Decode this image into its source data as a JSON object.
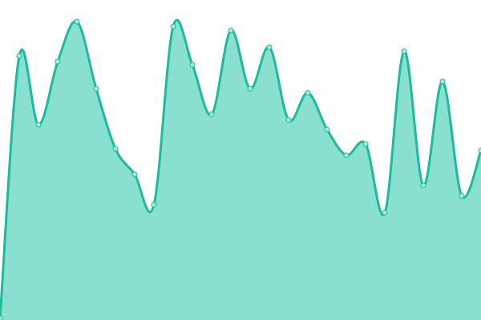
{
  "chart_data": {
    "type": "area",
    "title": "",
    "xlabel": "",
    "ylabel": "",
    "x": [
      0,
      1,
      2,
      3,
      4,
      5,
      6,
      7,
      8,
      9,
      10,
      11,
      12,
      13,
      14,
      15,
      16,
      17,
      18,
      19,
      20,
      21,
      22,
      23,
      24,
      25
    ],
    "values": [
      2,
      330,
      244,
      323,
      373,
      289,
      214,
      182,
      144,
      367,
      319,
      257,
      362,
      289,
      341,
      250,
      284,
      238,
      206,
      220,
      134,
      336,
      168,
      298,
      155,
      212
    ],
    "ylim": [
      0,
      400
    ],
    "grid": false,
    "axes_visible": false,
    "curve": "smooth",
    "markers": true,
    "colors": {
      "line": "#1abc9c",
      "fill": "#8ae0d0",
      "marker_fill": "#a8eadc"
    }
  }
}
